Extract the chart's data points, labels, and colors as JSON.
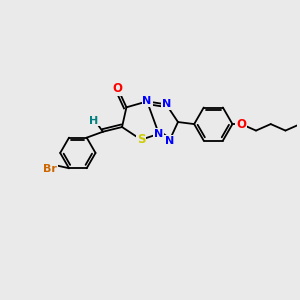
{
  "background_color": "#eaeaea",
  "bond_color": "#000000",
  "atom_colors": {
    "O": "#ff0000",
    "N": "#0000ff",
    "S": "#cccc00",
    "Br": "#cc6600",
    "H": "#008080",
    "C": "#000000"
  },
  "figsize": [
    3.0,
    3.0
  ],
  "dpi": 100
}
